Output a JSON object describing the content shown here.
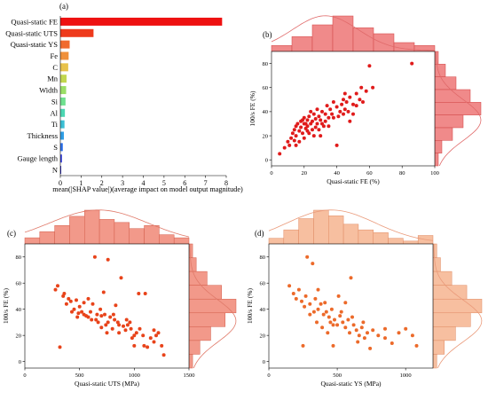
{
  "chart_data": [
    {
      "id": "a",
      "panel_label": "(a)",
      "type": "bar",
      "orientation": "horizontal",
      "xlabel": "mean(|SHAP value|)(average impact on model output magnitude)",
      "xlim": [
        0,
        8
      ],
      "xticks": [
        "0",
        "1",
        "2",
        "3",
        "4",
        "5",
        "6",
        "7",
        "8"
      ],
      "categories": [
        "Quasi-static FE",
        "Quasi-static UTS",
        "Quasi-static YS",
        "Fe",
        "C",
        "Mn",
        "Width",
        "Si",
        "Al",
        "Ti",
        "Thickness",
        "S",
        "Gauge length",
        "N"
      ],
      "values": [
        7.8,
        1.6,
        0.45,
        0.4,
        0.38,
        0.3,
        0.28,
        0.25,
        0.22,
        0.2,
        0.17,
        0.12,
        0.08,
        0.03
      ],
      "colors": [
        "#ee1111",
        "#ee3a1c",
        "#f06a2e",
        "#f0903a",
        "#e8c24a",
        "#c2d64f",
        "#9ade66",
        "#6fe08e",
        "#4cd6b2",
        "#3bbfd4",
        "#2f9ee6",
        "#2f72ec",
        "#3a44e0",
        "#2a2ab8"
      ]
    },
    {
      "id": "b",
      "panel_label": "(b)",
      "type": "scatter",
      "xlabel": "Quasi-static FE (%)",
      "ylabel": "100/s FE (%)",
      "xlim": [
        0,
        100
      ],
      "ylim": [
        -5,
        90
      ],
      "xticks": [
        0,
        20,
        40,
        60,
        80,
        100
      ],
      "yticks": [
        0,
        20,
        40,
        60,
        80
      ],
      "colors": {
        "point": "#e01b1b",
        "hist": "#f08a8a",
        "hist_edge": "#d14545",
        "curve": "#e06a6a"
      },
      "top_hist": [
        2,
        5,
        9,
        12,
        8,
        6,
        3,
        2
      ],
      "right_hist": [
        1,
        3,
        6,
        10,
        13,
        8,
        5,
        2,
        1
      ],
      "points": [
        [
          5,
          5
        ],
        [
          8,
          10
        ],
        [
          10,
          15
        ],
        [
          11,
          12
        ],
        [
          12,
          18
        ],
        [
          13,
          22
        ],
        [
          14,
          25
        ],
        [
          15,
          20
        ],
        [
          15,
          28
        ],
        [
          16,
          30
        ],
        [
          17,
          24
        ],
        [
          18,
          32
        ],
        [
          18,
          27
        ],
        [
          19,
          22
        ],
        [
          20,
          35
        ],
        [
          20,
          30
        ],
        [
          21,
          26
        ],
        [
          22,
          33
        ],
        [
          22,
          28
        ],
        [
          23,
          36
        ],
        [
          24,
          30
        ],
        [
          25,
          32
        ],
        [
          25,
          25
        ],
        [
          26,
          38
        ],
        [
          27,
          34
        ],
        [
          28,
          30
        ],
        [
          28,
          42
        ],
        [
          29,
          36
        ],
        [
          30,
          33
        ],
        [
          31,
          40
        ],
        [
          32,
          28
        ],
        [
          33,
          38
        ],
        [
          34,
          45
        ],
        [
          35,
          35
        ],
        [
          36,
          42
        ],
        [
          37,
          38
        ],
        [
          38,
          48
        ],
        [
          40,
          44
        ],
        [
          40,
          12
        ],
        [
          41,
          36
        ],
        [
          42,
          40
        ],
        [
          43,
          46
        ],
        [
          44,
          50
        ],
        [
          45,
          42
        ],
        [
          46,
          48
        ],
        [
          47,
          40
        ],
        [
          48,
          52
        ],
        [
          50,
          46
        ],
        [
          52,
          55
        ],
        [
          54,
          50
        ],
        [
          55,
          60
        ],
        [
          56,
          48
        ],
        [
          58,
          57
        ],
        [
          60,
          78
        ],
        [
          62,
          60
        ],
        [
          30,
          20
        ],
        [
          26,
          20
        ],
        [
          20,
          18
        ],
        [
          17,
          15
        ],
        [
          14,
          16
        ],
        [
          35,
          28
        ],
        [
          24,
          40
        ],
        [
          27,
          27
        ],
        [
          19,
          33
        ],
        [
          22,
          24
        ],
        [
          33,
          32
        ],
        [
          38,
          35
        ],
        [
          45,
          55
        ],
        [
          86,
          80
        ],
        [
          50,
          38
        ],
        [
          52,
          45
        ],
        [
          48,
          32
        ],
        [
          15,
          12
        ],
        [
          21,
          30
        ],
        [
          23,
          22
        ],
        [
          29,
          25
        ],
        [
          31,
          30
        ],
        [
          44,
          38
        ]
      ]
    },
    {
      "id": "c",
      "panel_label": "(c)",
      "type": "scatter",
      "xlabel": "Quasi-static UTS (MPa)",
      "ylabel": "100/s FE (%)",
      "xlim": [
        0,
        1500
      ],
      "ylim": [
        -5,
        90
      ],
      "xticks": [
        0,
        500,
        1000,
        1500
      ],
      "yticks": [
        0,
        20,
        40,
        60,
        80
      ],
      "colors": {
        "point": "#e8431a",
        "hist": "#f2998a",
        "hist_edge": "#d35d4a",
        "curve": "#e07a6a"
      },
      "top_hist": [
        2,
        4,
        6,
        9,
        11,
        8,
        7,
        5,
        6,
        3,
        2
      ],
      "right_hist": [
        1,
        2,
        5,
        9,
        13,
        10,
        6,
        3,
        1
      ],
      "points": [
        [
          280,
          55
        ],
        [
          320,
          11
        ],
        [
          350,
          50
        ],
        [
          380,
          44
        ],
        [
          400,
          48
        ],
        [
          420,
          46
        ],
        [
          450,
          40
        ],
        [
          470,
          47
        ],
        [
          500,
          42
        ],
        [
          520,
          38
        ],
        [
          540,
          36
        ],
        [
          560,
          35
        ],
        [
          580,
          34
        ],
        [
          600,
          38
        ],
        [
          620,
          44
        ],
        [
          640,
          80
        ],
        [
          650,
          32
        ],
        [
          670,
          30
        ],
        [
          700,
          35
        ],
        [
          720,
          53
        ],
        [
          730,
          36
        ],
        [
          740,
          28
        ],
        [
          760,
          30
        ],
        [
          780,
          34
        ],
        [
          800,
          25
        ],
        [
          820,
          32
        ],
        [
          830,
          43
        ],
        [
          850,
          30
        ],
        [
          860,
          22
        ],
        [
          880,
          64
        ],
        [
          900,
          27
        ],
        [
          920,
          24
        ],
        [
          940,
          28
        ],
        [
          960,
          30
        ],
        [
          980,
          18
        ],
        [
          1000,
          12
        ],
        [
          1020,
          22
        ],
        [
          1040,
          52
        ],
        [
          1050,
          25
        ],
        [
          1080,
          20
        ],
        [
          1100,
          52
        ],
        [
          1120,
          11
        ],
        [
          1150,
          18
        ],
        [
          1180,
          24
        ],
        [
          1200,
          20
        ],
        [
          1220,
          22
        ],
        [
          1250,
          12
        ],
        [
          1270,
          5
        ],
        [
          760,
          78
        ],
        [
          580,
          48
        ],
        [
          490,
          37
        ],
        [
          610,
          32
        ],
        [
          690,
          40
        ],
        [
          810,
          36
        ],
        [
          930,
          32
        ],
        [
          1000,
          20
        ],
        [
          1180,
          15
        ],
        [
          540,
          45
        ],
        [
          660,
          36
        ],
        [
          750,
          22
        ],
        [
          860,
          28
        ],
        [
          970,
          25
        ],
        [
          1090,
          12
        ],
        [
          300,
          58
        ],
        [
          360,
          52
        ],
        [
          430,
          38
        ],
        [
          480,
          34
        ],
        [
          700,
          26
        ]
      ]
    },
    {
      "id": "d",
      "panel_label": "(d)",
      "type": "scatter",
      "xlabel": "Quasi-static YS (MPa)",
      "ylabel": "100/s FE (%)",
      "xlim": [
        0,
        1200
      ],
      "ylim": [
        -5,
        90
      ],
      "xticks": [
        0,
        500,
        1000
      ],
      "yticks": [
        0,
        20,
        40,
        60,
        80
      ],
      "colors": {
        "point": "#ec6a2a",
        "hist": "#f7bfa0",
        "hist_edge": "#e08a62",
        "curve": "#ea9a7a"
      },
      "top_hist": [
        2,
        5,
        9,
        12,
        10,
        7,
        5,
        4,
        2,
        1,
        3
      ],
      "right_hist": [
        1,
        2,
        5,
        9,
        13,
        10,
        6,
        3,
        1
      ],
      "points": [
        [
          150,
          58
        ],
        [
          180,
          52
        ],
        [
          200,
          48
        ],
        [
          220,
          55
        ],
        [
          240,
          46
        ],
        [
          260,
          42
        ],
        [
          280,
          80
        ],
        [
          300,
          44
        ],
        [
          320,
          75
        ],
        [
          330,
          38
        ],
        [
          340,
          48
        ],
        [
          360,
          40
        ],
        [
          380,
          44
        ],
        [
          400,
          36
        ],
        [
          420,
          38
        ],
        [
          440,
          34
        ],
        [
          460,
          40
        ],
        [
          480,
          32
        ],
        [
          500,
          28
        ],
        [
          520,
          35
        ],
        [
          540,
          30
        ],
        [
          560,
          26
        ],
        [
          580,
          32
        ],
        [
          600,
          64
        ],
        [
          620,
          28
        ],
        [
          640,
          24
        ],
        [
          660,
          20
        ],
        [
          680,
          26
        ],
        [
          700,
          18
        ],
        [
          720,
          22
        ],
        [
          760,
          24
        ],
        [
          800,
          20
        ],
        [
          850,
          25
        ],
        [
          900,
          14
        ],
        [
          950,
          22
        ],
        [
          1000,
          25
        ],
        [
          1050,
          20
        ],
        [
          1080,
          12
        ],
        [
          250,
          12
        ],
        [
          350,
          30
        ],
        [
          410,
          45
        ],
        [
          470,
          28
        ],
        [
          530,
          38
        ],
        [
          590,
          22
        ],
        [
          470,
          12
        ],
        [
          510,
          50
        ],
        [
          560,
          45
        ],
        [
          610,
          34
        ],
        [
          650,
          15
        ],
        [
          390,
          26
        ],
        [
          430,
          22
        ],
        [
          300,
          36
        ],
        [
          270,
          50
        ],
        [
          690,
          30
        ],
        [
          740,
          10
        ],
        [
          850,
          18
        ],
        [
          360,
          55
        ],
        [
          450,
          30
        ]
      ]
    }
  ]
}
